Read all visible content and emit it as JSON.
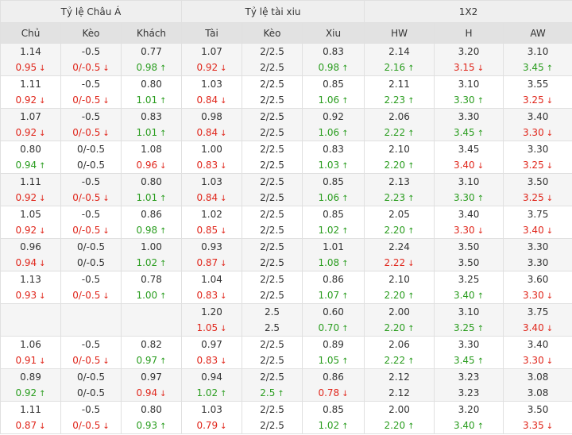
{
  "groups": [
    {
      "key": "asian",
      "label": "Tỷ lệ Châu Á"
    },
    {
      "key": "ou",
      "label": "Tỷ lệ tài xiu"
    },
    {
      "key": "x12",
      "label": "1X2"
    }
  ],
  "columns": [
    "Chủ",
    "Kèo",
    "Khách",
    "Tài",
    "Kèo",
    "Xiu",
    "HW",
    "H",
    "AW"
  ],
  "rows": [
    [
      [
        "1.14",
        ""
      ],
      [
        "0.95",
        "down"
      ],
      [
        "-0.5",
        ""
      ],
      [
        "0/-0.5",
        "down"
      ],
      [
        "0.77",
        ""
      ],
      [
        "0.98",
        "up"
      ],
      [
        "1.07",
        ""
      ],
      [
        "0.92",
        "down"
      ],
      [
        "2/2.5",
        ""
      ],
      [
        "2/2.5",
        ""
      ],
      [
        "0.83",
        ""
      ],
      [
        "0.98",
        "up"
      ],
      [
        "2.14",
        ""
      ],
      [
        "2.16",
        "up"
      ],
      [
        "3.20",
        ""
      ],
      [
        "3.15",
        "down"
      ],
      [
        "3.10",
        ""
      ],
      [
        "3.45",
        "up"
      ]
    ],
    [
      [
        "1.11",
        ""
      ],
      [
        "0.92",
        "down"
      ],
      [
        "-0.5",
        ""
      ],
      [
        "0/-0.5",
        "down"
      ],
      [
        "0.80",
        ""
      ],
      [
        "1.01",
        "up"
      ],
      [
        "1.03",
        ""
      ],
      [
        "0.84",
        "down"
      ],
      [
        "2/2.5",
        ""
      ],
      [
        "2/2.5",
        ""
      ],
      [
        "0.85",
        ""
      ],
      [
        "1.06",
        "up"
      ],
      [
        "2.11",
        ""
      ],
      [
        "2.23",
        "up"
      ],
      [
        "3.10",
        ""
      ],
      [
        "3.30",
        "up"
      ],
      [
        "3.55",
        ""
      ],
      [
        "3.25",
        "down"
      ]
    ],
    [
      [
        "1.07",
        ""
      ],
      [
        "0.92",
        "down"
      ],
      [
        "-0.5",
        ""
      ],
      [
        "0/-0.5",
        "down"
      ],
      [
        "0.83",
        ""
      ],
      [
        "1.01",
        "up"
      ],
      [
        "0.98",
        ""
      ],
      [
        "0.84",
        "down"
      ],
      [
        "2/2.5",
        ""
      ],
      [
        "2/2.5",
        ""
      ],
      [
        "0.92",
        ""
      ],
      [
        "1.06",
        "up"
      ],
      [
        "2.06",
        ""
      ],
      [
        "2.22",
        "up"
      ],
      [
        "3.30",
        ""
      ],
      [
        "3.45",
        "up"
      ],
      [
        "3.40",
        ""
      ],
      [
        "3.30",
        "down"
      ]
    ],
    [
      [
        "0.80",
        ""
      ],
      [
        "0.94",
        "up"
      ],
      [
        "0/-0.5",
        ""
      ],
      [
        "0/-0.5",
        ""
      ],
      [
        "1.08",
        ""
      ],
      [
        "0.96",
        "down"
      ],
      [
        "1.00",
        ""
      ],
      [
        "0.83",
        "down"
      ],
      [
        "2/2.5",
        ""
      ],
      [
        "2/2.5",
        ""
      ],
      [
        "0.83",
        ""
      ],
      [
        "1.03",
        "up"
      ],
      [
        "2.10",
        ""
      ],
      [
        "2.20",
        "up"
      ],
      [
        "3.45",
        ""
      ],
      [
        "3.40",
        "down"
      ],
      [
        "3.30",
        ""
      ],
      [
        "3.25",
        "down"
      ]
    ],
    [
      [
        "1.11",
        ""
      ],
      [
        "0.92",
        "down"
      ],
      [
        "-0.5",
        ""
      ],
      [
        "0/-0.5",
        "down"
      ],
      [
        "0.80",
        ""
      ],
      [
        "1.01",
        "up"
      ],
      [
        "1.03",
        ""
      ],
      [
        "0.84",
        "down"
      ],
      [
        "2/2.5",
        ""
      ],
      [
        "2/2.5",
        ""
      ],
      [
        "0.85",
        ""
      ],
      [
        "1.06",
        "up"
      ],
      [
        "2.13",
        ""
      ],
      [
        "2.23",
        "up"
      ],
      [
        "3.10",
        ""
      ],
      [
        "3.30",
        "up"
      ],
      [
        "3.50",
        ""
      ],
      [
        "3.25",
        "down"
      ]
    ],
    [
      [
        "1.05",
        ""
      ],
      [
        "0.92",
        "down"
      ],
      [
        "-0.5",
        ""
      ],
      [
        "0/-0.5",
        "down"
      ],
      [
        "0.86",
        ""
      ],
      [
        "0.98",
        "up"
      ],
      [
        "1.02",
        ""
      ],
      [
        "0.85",
        "down"
      ],
      [
        "2/2.5",
        ""
      ],
      [
        "2/2.5",
        ""
      ],
      [
        "0.85",
        ""
      ],
      [
        "1.02",
        "up"
      ],
      [
        "2.05",
        ""
      ],
      [
        "2.20",
        "up"
      ],
      [
        "3.40",
        ""
      ],
      [
        "3.30",
        "down"
      ],
      [
        "3.75",
        ""
      ],
      [
        "3.40",
        "down"
      ]
    ],
    [
      [
        "0.96",
        ""
      ],
      [
        "0.94",
        "down"
      ],
      [
        "0/-0.5",
        ""
      ],
      [
        "0/-0.5",
        ""
      ],
      [
        "1.00",
        ""
      ],
      [
        "1.02",
        "up"
      ],
      [
        "0.93",
        ""
      ],
      [
        "0.87",
        "down"
      ],
      [
        "2/2.5",
        ""
      ],
      [
        "2/2.5",
        ""
      ],
      [
        "1.01",
        ""
      ],
      [
        "1.08",
        "up"
      ],
      [
        "2.24",
        ""
      ],
      [
        "2.22",
        "down"
      ],
      [
        "3.50",
        ""
      ],
      [
        "3.50",
        ""
      ],
      [
        "3.30",
        ""
      ],
      [
        "3.30",
        ""
      ]
    ],
    [
      [
        "1.13",
        ""
      ],
      [
        "0.93",
        "down"
      ],
      [
        "-0.5",
        ""
      ],
      [
        "0/-0.5",
        "down"
      ],
      [
        "0.78",
        ""
      ],
      [
        "1.00",
        "up"
      ],
      [
        "1.04",
        ""
      ],
      [
        "0.83",
        "down"
      ],
      [
        "2/2.5",
        ""
      ],
      [
        "2/2.5",
        ""
      ],
      [
        "0.86",
        ""
      ],
      [
        "1.07",
        "up"
      ],
      [
        "2.10",
        ""
      ],
      [
        "2.20",
        "up"
      ],
      [
        "3.25",
        ""
      ],
      [
        "3.40",
        "up"
      ],
      [
        "3.60",
        ""
      ],
      [
        "3.30",
        "down"
      ]
    ],
    [
      [
        "",
        ""
      ],
      [
        "",
        ""
      ],
      [
        "",
        ""
      ],
      [
        "",
        ""
      ],
      [
        "",
        ""
      ],
      [
        "",
        ""
      ],
      [
        "1.20",
        ""
      ],
      [
        "1.05",
        "down"
      ],
      [
        "2.5",
        ""
      ],
      [
        "2.5",
        ""
      ],
      [
        "0.60",
        ""
      ],
      [
        "0.70",
        "up"
      ],
      [
        "2.00",
        ""
      ],
      [
        "2.20",
        "up"
      ],
      [
        "3.10",
        ""
      ],
      [
        "3.25",
        "up"
      ],
      [
        "3.75",
        ""
      ],
      [
        "3.40",
        "down"
      ]
    ],
    [
      [
        "1.06",
        ""
      ],
      [
        "0.91",
        "down"
      ],
      [
        "-0.5",
        ""
      ],
      [
        "0/-0.5",
        "down"
      ],
      [
        "0.82",
        ""
      ],
      [
        "0.97",
        "up"
      ],
      [
        "0.97",
        ""
      ],
      [
        "0.83",
        "down"
      ],
      [
        "2/2.5",
        ""
      ],
      [
        "2/2.5",
        ""
      ],
      [
        "0.89",
        ""
      ],
      [
        "1.05",
        "up"
      ],
      [
        "2.06",
        ""
      ],
      [
        "2.22",
        "up"
      ],
      [
        "3.30",
        ""
      ],
      [
        "3.45",
        "up"
      ],
      [
        "3.40",
        ""
      ],
      [
        "3.30",
        "down"
      ]
    ],
    [
      [
        "0.89",
        ""
      ],
      [
        "0.92",
        "up"
      ],
      [
        "0/-0.5",
        ""
      ],
      [
        "0/-0.5",
        ""
      ],
      [
        "0.97",
        ""
      ],
      [
        "0.94",
        "down"
      ],
      [
        "0.94",
        ""
      ],
      [
        "1.02",
        "up"
      ],
      [
        "2/2.5",
        ""
      ],
      [
        "2.5",
        "up"
      ],
      [
        "0.86",
        ""
      ],
      [
        "0.78",
        "down"
      ],
      [
        "2.12",
        ""
      ],
      [
        "2.12",
        ""
      ],
      [
        "3.23",
        ""
      ],
      [
        "3.23",
        ""
      ],
      [
        "3.08",
        ""
      ],
      [
        "3.08",
        ""
      ]
    ],
    [
      [
        "1.11",
        ""
      ],
      [
        "0.87",
        "down"
      ],
      [
        "-0.5",
        ""
      ],
      [
        "0/-0.5",
        "down"
      ],
      [
        "0.80",
        ""
      ],
      [
        "0.93",
        "up"
      ],
      [
        "1.03",
        ""
      ],
      [
        "0.79",
        "down"
      ],
      [
        "2/2.5",
        ""
      ],
      [
        "2/2.5",
        ""
      ],
      [
        "0.85",
        ""
      ],
      [
        "1.02",
        "up"
      ],
      [
        "2.00",
        ""
      ],
      [
        "2.20",
        "up"
      ],
      [
        "3.20",
        ""
      ],
      [
        "3.40",
        "up"
      ],
      [
        "3.50",
        ""
      ],
      [
        "3.35",
        "down"
      ]
    ]
  ],
  "colors": {
    "up": "#2a9d1f",
    "down": "#e0261b",
    "header_bg": "#efefef",
    "subheader_bg": "#e2e2e2",
    "stripe": "#f5f5f5"
  }
}
